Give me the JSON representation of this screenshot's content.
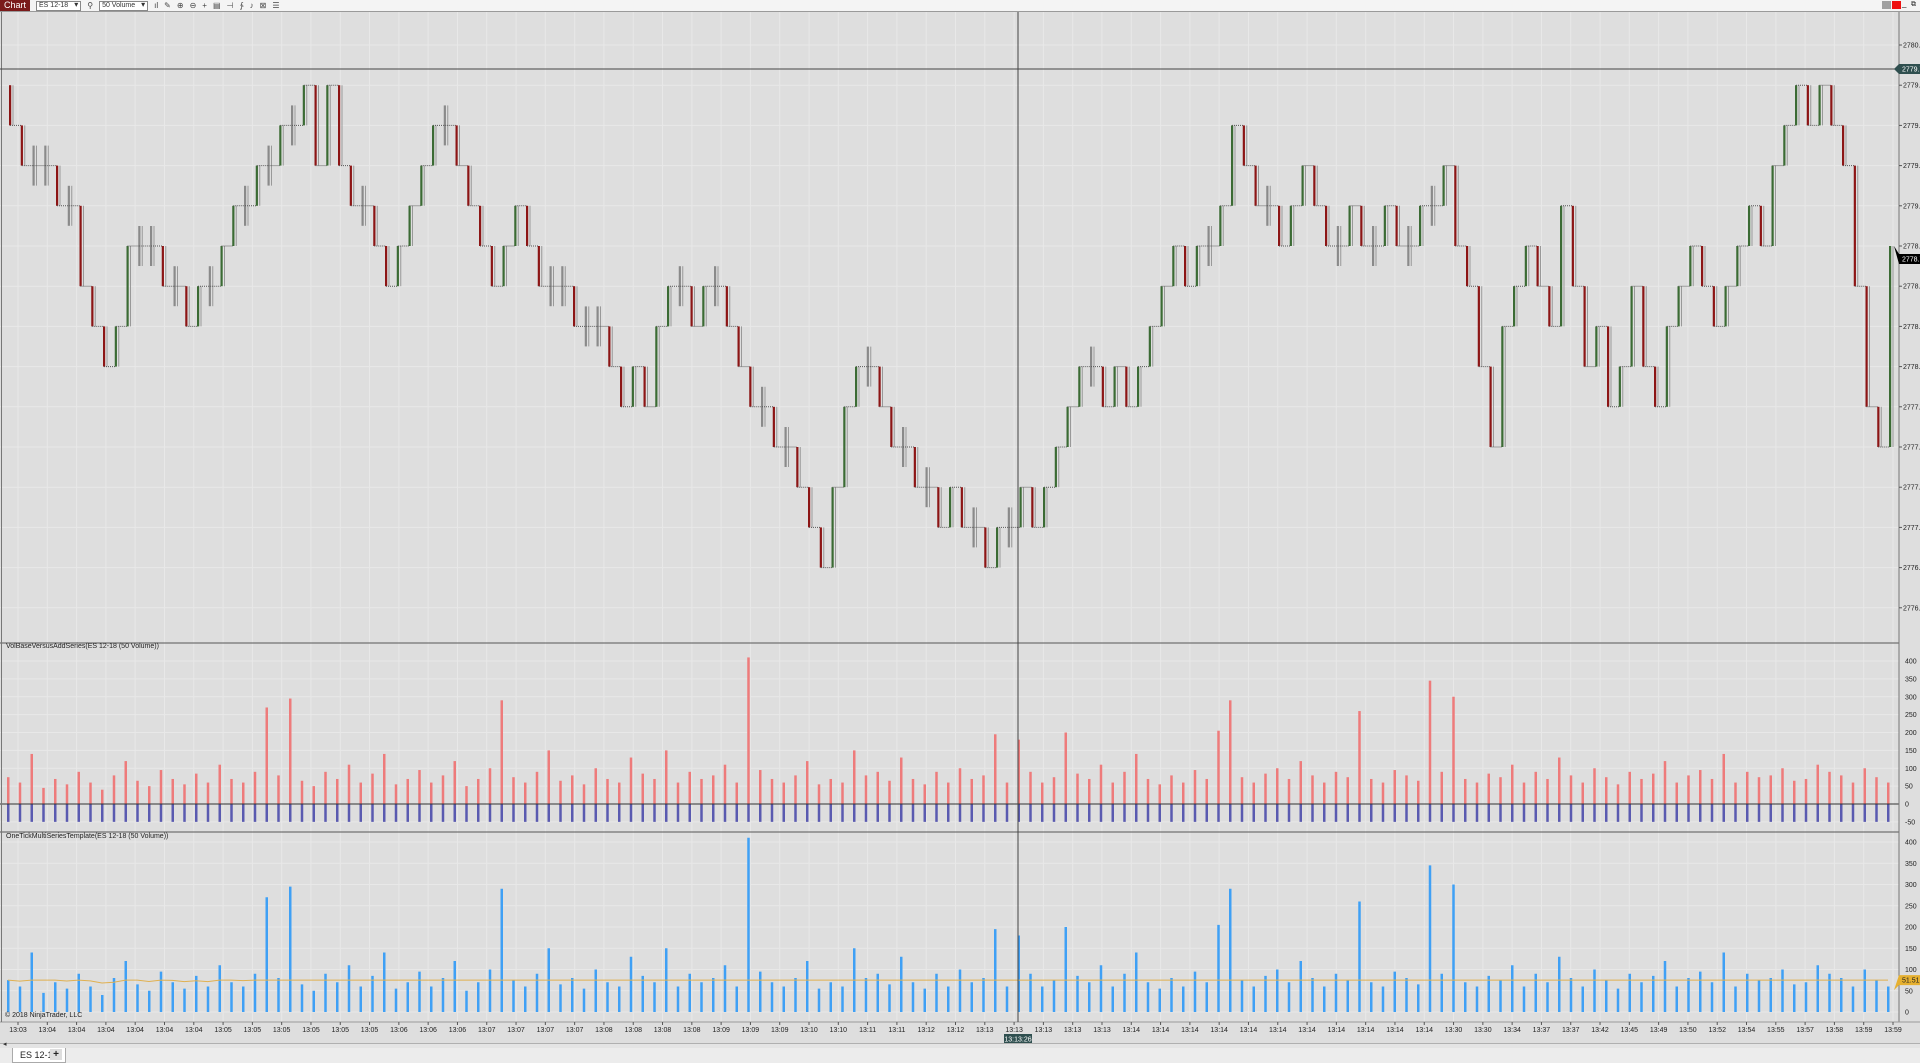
{
  "toolbar": {
    "chart_tab": "Chart",
    "instrument": "ES 12-18",
    "interval": "50 Volume",
    "icons": [
      "search-icon",
      "bars-type-icon",
      "draw-tool-icon",
      "zoom-in-icon",
      "zoom-out-icon",
      "crosshair-icon",
      "data-box-icon",
      "properties-icon",
      "indicators-icon",
      "strategies-icon",
      "snapshot-icon",
      "menu-icon"
    ]
  },
  "window_controls": {
    "colors": [
      "#a0a0a0",
      "#ee1111"
    ]
  },
  "colors": {
    "background": "#dedede",
    "grid": "#e8e8e8",
    "up": "#3b6b34",
    "down": "#8c1515",
    "doji": "#8a8a8a",
    "vol_pos": "#ee7b7b",
    "vol_neg": "#5a5ab0",
    "vol3": "#3fa0f5",
    "avg": "#e0b050",
    "crosshair_tag": "#2f4f4f",
    "last_tag": "#000000",
    "avg_tag": "#e6b030"
  },
  "chart_data": [
    {
      "type": "candlestick",
      "instrument": "ES 12-18",
      "bar_type": "50 Volume",
      "ylim": [
        2776.5,
        2780.0
      ],
      "y_ticks": [
        "2780.00",
        "2779.75",
        "2779.50",
        "2779.25",
        "2779.00",
        "2778.75",
        "2778.50",
        "2778.25",
        "2778.00",
        "2777.75",
        "2777.50",
        "2777.25",
        "2777.00",
        "2776.75",
        "2776.50"
      ],
      "grid": true,
      "closes": [
        2779.5,
        2779.25,
        2779.25,
        2779.25,
        2779.0,
        2779.0,
        2778.5,
        2778.25,
        2778.0,
        2778.25,
        2778.75,
        2778.75,
        2778.75,
        2778.5,
        2778.5,
        2778.25,
        2778.5,
        2778.5,
        2778.75,
        2779.0,
        2779.0,
        2779.25,
        2779.25,
        2779.5,
        2779.5,
        2779.75,
        2779.25,
        2779.75,
        2779.25,
        2779.0,
        2779.0,
        2778.75,
        2778.5,
        2778.75,
        2779.0,
        2779.25,
        2779.5,
        2779.5,
        2779.25,
        2779.0,
        2778.75,
        2778.5,
        2778.75,
        2779.0,
        2778.75,
        2778.5,
        2778.5,
        2778.5,
        2778.25,
        2778.25,
        2778.25,
        2778.0,
        2777.75,
        2778.0,
        2777.75,
        2778.25,
        2778.5,
        2778.5,
        2778.25,
        2778.5,
        2778.5,
        2778.25,
        2778.0,
        2777.75,
        2777.75,
        2777.5,
        2777.5,
        2777.25,
        2777.0,
        2776.75,
        2777.25,
        2777.75,
        2778.0,
        2778.0,
        2777.75,
        2777.5,
        2777.5,
        2777.25,
        2777.25,
        2777.0,
        2777.25,
        2777.0,
        2777.0,
        2776.75,
        2777.0,
        2777.0,
        2777.25,
        2777.0,
        2777.25,
        2777.5,
        2777.75,
        2778.0,
        2778.0,
        2777.75,
        2778.0,
        2777.75,
        2778.0,
        2778.25,
        2778.5,
        2778.75,
        2778.5,
        2778.75,
        2778.75,
        2779.0,
        2779.5,
        2779.25,
        2779.0,
        2779.0,
        2778.75,
        2779.0,
        2779.25,
        2779.0,
        2778.75,
        2778.75,
        2779.0,
        2778.75,
        2778.75,
        2779.0,
        2778.75,
        2778.75,
        2779.0,
        2779.0,
        2779.25,
        2778.75,
        2778.5,
        2778.0,
        2777.5,
        2778.25,
        2778.5,
        2778.75,
        2778.5,
        2778.25,
        2779.0,
        2778.5,
        2778.0,
        2778.25,
        2777.75,
        2778.0,
        2778.5,
        2778.0,
        2777.75,
        2778.25,
        2778.5,
        2778.75,
        2778.5,
        2778.25,
        2778.5,
        2778.75,
        2779.0,
        2778.75,
        2779.25,
        2779.5,
        2779.75,
        2779.5,
        2779.75,
        2779.5,
        2779.25,
        2778.5,
        2777.75,
        2777.5,
        2778.75
      ],
      "crosshair_price": "2779.75",
      "last_price": "2778.75"
    },
    {
      "type": "bar",
      "title": "VolBaseVersusAddSeries(ES 12-18 (50 Volume))",
      "ylim": [
        -50,
        400
      ],
      "y_ticks": [
        "400",
        "350",
        "300",
        "250",
        "200",
        "150",
        "100",
        "50",
        "0",
        "-50"
      ],
      "negative_value": -50,
      "values": [
        75,
        60,
        140,
        45,
        70,
        55,
        90,
        60,
        40,
        80,
        120,
        65,
        50,
        95,
        70,
        55,
        85,
        60,
        110,
        70,
        60,
        90,
        270,
        80,
        295,
        65,
        50,
        90,
        70,
        110,
        60,
        85,
        140,
        55,
        70,
        95,
        60,
        80,
        120,
        50,
        70,
        100,
        290,
        75,
        60,
        90,
        150,
        65,
        80,
        55,
        100,
        70,
        60,
        130,
        85,
        70,
        150,
        60,
        90,
        70,
        80,
        110,
        60,
        410,
        95,
        70,
        60,
        80,
        120,
        55,
        70,
        60,
        150,
        80,
        90,
        65,
        130,
        70,
        55,
        90,
        60,
        100,
        70,
        80,
        195,
        60,
        180,
        90,
        60,
        75,
        200,
        85,
        70,
        110,
        60,
        90,
        140,
        70,
        55,
        80,
        60,
        95,
        70,
        205,
        290,
        75,
        60,
        85,
        100,
        70,
        120,
        80,
        60,
        90,
        75,
        260,
        70,
        60,
        95,
        80,
        65,
        345,
        90,
        300,
        70,
        60,
        85,
        75,
        110,
        60,
        90,
        70,
        130,
        80,
        60,
        100,
        75,
        55,
        90,
        70,
        85,
        120,
        60,
        80,
        95,
        70,
        140,
        60,
        90,
        75,
        80,
        100,
        65,
        70,
        110,
        90,
        80,
        60,
        100,
        75,
        60
      ]
    },
    {
      "type": "bar",
      "title": "OneTickMultiSeriesTemplate(ES 12-18 (50 Volume))",
      "ylim": [
        0,
        400
      ],
      "y_ticks": [
        "400",
        "350",
        "300",
        "250",
        "200",
        "150",
        "100",
        "50",
        "0"
      ],
      "avg_value": "51.51"
    }
  ],
  "time_axis": {
    "labels": [
      "13:03",
      "13:04",
      "13:04",
      "13:04",
      "13:04",
      "13:04",
      "13:04",
      "13:05",
      "13:05",
      "13:05",
      "13:05",
      "13:05",
      "13:05",
      "13:06",
      "13:06",
      "13:06",
      "13:07",
      "13:07",
      "13:07",
      "13:07",
      "13:08",
      "13:08",
      "13:08",
      "13:08",
      "13:09",
      "13:09",
      "13:09",
      "13:10",
      "13:10",
      "13:11",
      "13:11",
      "13:12",
      "13:12",
      "13:13",
      "13:13",
      "13:13",
      "13:13",
      "13:13",
      "13:14",
      "13:14",
      "13:14",
      "13:14",
      "13:14",
      "13:14",
      "13:14",
      "13:14",
      "13:14",
      "13:14",
      "13:14",
      "13:30",
      "13:30",
      "13:34",
      "13:37",
      "13:37",
      "13:42",
      "13:45",
      "13:49",
      "13:50",
      "13:52",
      "13:54",
      "13:55",
      "13:57",
      "13:58",
      "13:59",
      "13:59"
    ],
    "crosshair_time": "13:13:26"
  },
  "copyright": "© 2018 NinjaTrader, LLC",
  "tabs": [
    {
      "label": "ES 12-18"
    }
  ],
  "add_tab": "+"
}
